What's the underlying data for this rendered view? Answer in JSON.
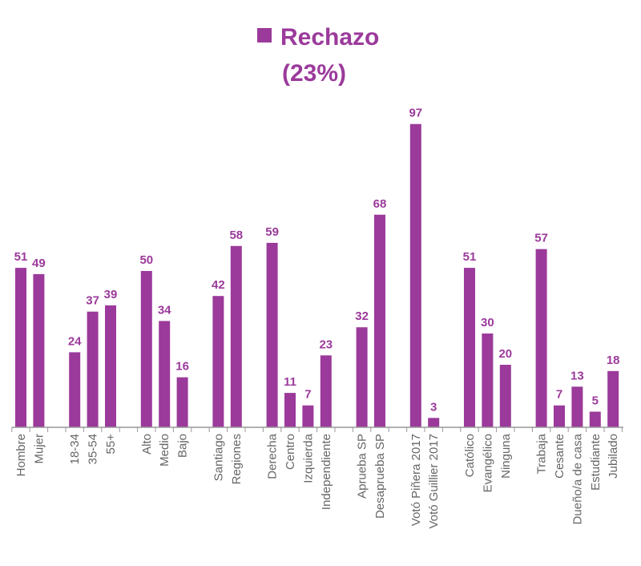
{
  "chart_data": {
    "type": "bar",
    "title": "Rechazo",
    "subtitle": "(23%)",
    "legend_marker_color": "#9B3A9B",
    "bar_color": "#9B3A9B",
    "xlabel": "",
    "ylabel": "",
    "ylim": [
      0,
      100
    ],
    "grid": false,
    "groups": [
      {
        "categories": [
          "Hombre",
          "Mujer"
        ],
        "values": [
          51,
          49
        ]
      },
      {
        "categories": [
          "18-34",
          "35-54",
          "55+"
        ],
        "values": [
          24,
          37,
          39
        ]
      },
      {
        "categories": [
          "Alto",
          "Medio",
          "Bajo"
        ],
        "values": [
          50,
          34,
          16
        ]
      },
      {
        "categories": [
          "Santiago",
          "Regiones"
        ],
        "values": [
          42,
          58
        ]
      },
      {
        "categories": [
          "Derecha",
          "Centro",
          "Izquierda",
          "Independiente"
        ],
        "values": [
          59,
          11,
          7,
          23
        ]
      },
      {
        "categories": [
          "Aprueba SP",
          "Desaprueba SP"
        ],
        "values": [
          32,
          68
        ]
      },
      {
        "categories": [
          "Votó Piñera 2017",
          "Votó Guillier 2017"
        ],
        "values": [
          97,
          3
        ]
      },
      {
        "categories": [
          "Católico",
          "Evangélico",
          "Ninguna"
        ],
        "values": [
          51,
          30,
          20
        ]
      },
      {
        "categories": [
          "Trabaja",
          "Cesante",
          "Dueño/a de casa",
          "Estudiante",
          "Jubilado"
        ],
        "values": [
          57,
          7,
          13,
          5,
          18
        ]
      }
    ]
  }
}
